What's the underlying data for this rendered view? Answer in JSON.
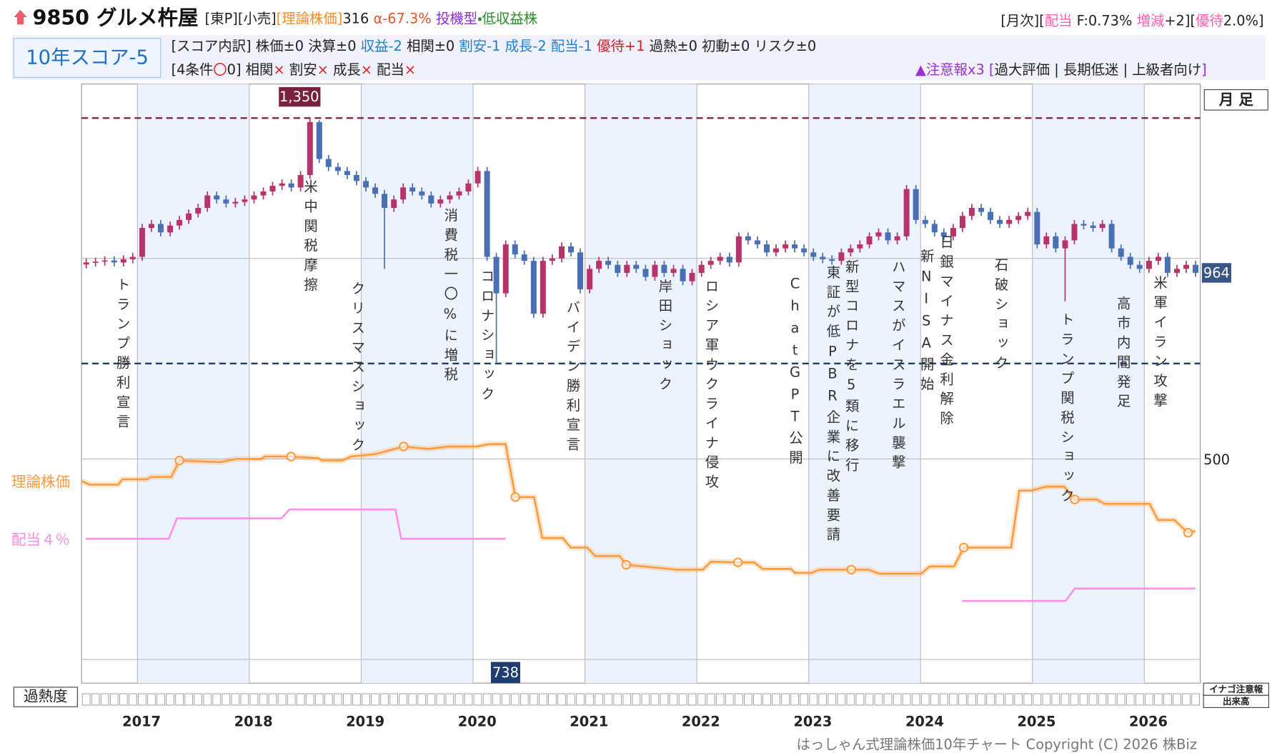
{
  "header": {
    "title": "9850 グルメ杵屋",
    "left_parts": [
      {
        "text": "[東P][小売]",
        "color": "#222"
      },
      {
        "text": "[理論株価]",
        "color": "#ff8a1f"
      },
      {
        "text": "316",
        "color": "#222"
      },
      {
        "text": " α-67.3%",
        "color": "#e8542a"
      },
      {
        "text": " 投機型",
        "color": "#8a2be2"
      },
      {
        "text": "・低収益株",
        "color": "#2e8b2e"
      }
    ],
    "right_parts": [
      {
        "text": "[月次][",
        "color": "#222"
      },
      {
        "text": "配当",
        "color": "#ff5fb0"
      },
      {
        "text": " F:0.73% ",
        "color": "#222"
      },
      {
        "text": "増減",
        "color": "#ff5fb0"
      },
      {
        "text": "+2][",
        "color": "#222"
      },
      {
        "text": "優待",
        "color": "#ff5fb0"
      },
      {
        "text": "2.0%]",
        "color": "#222"
      }
    ],
    "score": "10年スコア-5",
    "breakdown": [
      {
        "text": "[スコア内訳] 株価±0 決算±0 ",
        "color": "#222"
      },
      {
        "text": "収益-2",
        "color": "#1e7fd8"
      },
      {
        "text": " 相関±0 ",
        "color": "#222"
      },
      {
        "text": "割安-1 成長-2 配当-1 ",
        "color": "#1e7fd8"
      },
      {
        "text": "優待+1",
        "color": "#d0202a"
      },
      {
        "text": " 過熱±0 初動±0 リスク±0",
        "color": "#222"
      }
    ],
    "conditions": [
      {
        "text": "[4条件",
        "color": "#222"
      },
      {
        "text": "〇",
        "color": "#e02020"
      },
      {
        "text": "0] 相関",
        "color": "#222"
      },
      {
        "text": "×",
        "color": "#e02020"
      },
      {
        "text": " 割安",
        "color": "#222"
      },
      {
        "text": "×",
        "color": "#e02020"
      },
      {
        "text": " 成長",
        "color": "#222"
      },
      {
        "text": "×",
        "color": "#e02020"
      },
      {
        "text": " 配当",
        "color": "#222"
      },
      {
        "text": "×",
        "color": "#e02020"
      }
    ],
    "warning": [
      {
        "text": "▲注意報x3 [",
        "color": "#9b30d9"
      },
      {
        "text": "過大評価 | 長期低迷 | 上級者向け",
        "color": "#222"
      },
      {
        "text": "]",
        "color": "#9b30d9"
      }
    ]
  },
  "chart_data": {
    "type": "candlestick",
    "up_color": "#b8336a",
    "down_color": "#4a6fb5",
    "x": [
      2016.542,
      2016.625,
      2016.708,
      2016.792,
      2016.875,
      2016.958,
      2017.042,
      2017.125,
      2017.208,
      2017.292,
      2017.375,
      2017.458,
      2017.542,
      2017.625,
      2017.708,
      2017.792,
      2017.875,
      2017.958,
      2018.042,
      2018.125,
      2018.208,
      2018.292,
      2018.375,
      2018.458,
      2018.542,
      2018.625,
      2018.708,
      2018.792,
      2018.875,
      2018.958,
      2019.042,
      2019.125,
      2019.208,
      2019.292,
      2019.375,
      2019.458,
      2019.542,
      2019.625,
      2019.708,
      2019.792,
      2019.875,
      2019.958,
      2020.042,
      2020.125,
      2020.208,
      2020.292,
      2020.375,
      2020.458,
      2020.542,
      2020.625,
      2020.708,
      2020.792,
      2020.875,
      2020.958,
      2021.042,
      2021.125,
      2021.208,
      2021.292,
      2021.375,
      2021.458,
      2021.542,
      2021.625,
      2021.708,
      2021.792,
      2021.875,
      2021.958,
      2022.042,
      2022.125,
      2022.208,
      2022.292,
      2022.375,
      2022.458,
      2022.542,
      2022.625,
      2022.708,
      2022.792,
      2022.875,
      2022.958,
      2023.042,
      2023.125,
      2023.208,
      2023.292,
      2023.375,
      2023.458,
      2023.542,
      2023.625,
      2023.708,
      2023.792,
      2023.875,
      2023.958,
      2024.042,
      2024.125,
      2024.208,
      2024.292,
      2024.375,
      2024.458,
      2024.542,
      2024.625,
      2024.708,
      2024.792,
      2024.875,
      2024.958,
      2025.042,
      2025.125,
      2025.208,
      2025.292,
      2025.375,
      2025.458,
      2025.542,
      2025.625,
      2025.708,
      2025.792,
      2025.875,
      2025.958,
      2026.042,
      2026.125,
      2026.208,
      2026.292,
      2026.375,
      2026.458
    ],
    "open": [
      985,
      990,
      992,
      995,
      990,
      998,
      1004,
      1076,
      1086,
      1065,
      1082,
      1096,
      1112,
      1126,
      1157,
      1147,
      1137,
      1141,
      1147,
      1157,
      1167,
      1181,
      1187,
      1177,
      1208,
      1340,
      1248,
      1228,
      1218,
      1208,
      1193,
      1177,
      1161,
      1126,
      1147,
      1177,
      1167,
      1157,
      1137,
      1147,
      1157,
      1167,
      1187,
      1218,
      1004,
      913,
      1035,
      1010,
      994,
      862,
      994,
      1000,
      1030,
      1015,
      923,
      974,
      994,
      984,
      964,
      984,
      974,
      954,
      984,
      964,
      974,
      943,
      964,
      984,
      994,
      1004,
      990,
      1055,
      1045,
      1035,
      1015,
      1025,
      1035,
      1025,
      1015,
      1004,
      998,
      994,
      1015,
      1025,
      1035,
      1055,
      1065,
      1045,
      1055,
      1173,
      1096,
      1086,
      1065,
      1055,
      1076,
      1106,
      1126,
      1116,
      1096,
      1086,
      1096,
      1106,
      1116,
      1035,
      1055,
      1025,
      1045,
      1086,
      1082,
      1076,
      1086,
      1025,
      1004,
      984,
      974,
      994,
      1004,
      964,
      974,
      984
    ],
    "high": [
      1000,
      1002,
      1005,
      1005,
      1008,
      1014,
      1086,
      1096,
      1096,
      1092,
      1106,
      1122,
      1136,
      1167,
      1167,
      1157,
      1151,
      1157,
      1167,
      1177,
      1191,
      1197,
      1197,
      1218,
      1350,
      1345,
      1258,
      1238,
      1228,
      1218,
      1203,
      1187,
      1171,
      1157,
      1187,
      1187,
      1177,
      1167,
      1157,
      1167,
      1177,
      1197,
      1228,
      1228,
      1014,
      1045,
      1045,
      1020,
      1004,
      1004,
      1010,
      1040,
      1040,
      1025,
      984,
      1004,
      1004,
      994,
      994,
      994,
      984,
      994,
      994,
      984,
      984,
      974,
      994,
      1004,
      1014,
      1014,
      1065,
      1065,
      1055,
      1045,
      1035,
      1045,
      1045,
      1035,
      1025,
      1014,
      1008,
      1025,
      1035,
      1045,
      1065,
      1075,
      1075,
      1065,
      1183,
      1183,
      1106,
      1096,
      1075,
      1086,
      1116,
      1136,
      1136,
      1126,
      1106,
      1106,
      1116,
      1126,
      1126,
      1065,
      1065,
      1055,
      1096,
      1096,
      1092,
      1096,
      1096,
      1035,
      1014,
      994,
      1004,
      1014,
      1014,
      984,
      994,
      994
    ],
    "low": [
      975,
      980,
      982,
      980,
      980,
      988,
      994,
      1066,
      1055,
      1055,
      1072,
      1086,
      1102,
      1116,
      1137,
      1127,
      1127,
      1131,
      1137,
      1147,
      1157,
      1171,
      1167,
      1167,
      1198,
      1238,
      1218,
      1208,
      1198,
      1183,
      1167,
      1151,
      974,
      1116,
      1137,
      1157,
      1147,
      1127,
      1127,
      1137,
      1147,
      1157,
      1177,
      994,
      738,
      903,
      1000,
      984,
      852,
      852,
      984,
      990,
      1005,
      913,
      913,
      964,
      974,
      954,
      954,
      964,
      944,
      944,
      954,
      954,
      933,
      933,
      954,
      974,
      984,
      980,
      980,
      1035,
      1025,
      1005,
      1005,
      1015,
      1015,
      1005,
      994,
      988,
      984,
      984,
      1005,
      1015,
      1025,
      1045,
      1035,
      1035,
      1045,
      1086,
      1076,
      1055,
      1045,
      1045,
      1066,
      1096,
      1106,
      1086,
      1076,
      1076,
      1086,
      1096,
      1025,
      1025,
      1015,
      893,
      1035,
      1072,
      1066,
      1066,
      1015,
      994,
      974,
      964,
      964,
      984,
      954,
      954,
      964,
      954
    ],
    "close": [
      990,
      992,
      995,
      990,
      998,
      1004,
      1076,
      1086,
      1065,
      1082,
      1096,
      1112,
      1126,
      1157,
      1147,
      1137,
      1141,
      1147,
      1157,
      1167,
      1181,
      1187,
      1177,
      1208,
      1340,
      1248,
      1228,
      1218,
      1208,
      1193,
      1177,
      1161,
      1126,
      1147,
      1177,
      1167,
      1157,
      1137,
      1147,
      1157,
      1167,
      1187,
      1218,
      1004,
      913,
      1035,
      1010,
      994,
      862,
      994,
      1000,
      1030,
      1015,
      923,
      974,
      994,
      984,
      964,
      984,
      974,
      954,
      984,
      964,
      974,
      943,
      964,
      984,
      994,
      1004,
      990,
      1055,
      1045,
      1035,
      1015,
      1025,
      1035,
      1025,
      1015,
      1004,
      998,
      994,
      1015,
      1025,
      1035,
      1055,
      1065,
      1045,
      1055,
      1173,
      1096,
      1086,
      1065,
      1055,
      1076,
      1106,
      1126,
      1116,
      1096,
      1086,
      1096,
      1106,
      1116,
      1035,
      1055,
      1025,
      1045,
      1086,
      1082,
      1076,
      1086,
      1025,
      1004,
      984,
      974,
      994,
      1004,
      964,
      974,
      984,
      964
    ],
    "xlim": [
      2016.5,
      2026.5
    ],
    "xticks": [
      2017,
      2018,
      2019,
      2020,
      2021,
      2022,
      2023,
      2024,
      2025,
      2026
    ],
    "ylim": [
      -59,
      1435
    ],
    "yticks": [
      500
    ],
    "grid_lines": [
      0,
      1000
    ],
    "max_label": {
      "value": 1350,
      "label": "1,350"
    },
    "min_label": {
      "value": 738,
      "label": "738"
    },
    "last_label": {
      "value": 964,
      "label": "964"
    },
    "period": "月 足",
    "lines": [
      {
        "name": "理論株価",
        "color": "#ff9a3c",
        "x": [
          2016.5,
          2016.573,
          2016.828,
          2016.864,
          2017.083,
          2017.12,
          2017.302,
          2017.375,
          2017.739,
          2017.885,
          2018.104,
          2018.14,
          2018.373,
          2018.614,
          2018.65,
          2018.832,
          2018.905,
          2019.124,
          2019.379,
          2019.598,
          2019.78,
          2020.035,
          2020.144,
          2020.29,
          2020.378,
          2020.545,
          2020.618,
          2020.8,
          2020.873,
          2021.019,
          2021.092,
          2021.31,
          2021.369,
          2021.675,
          2021.821,
          2022.054,
          2022.127,
          2022.367,
          2022.513,
          2022.586,
          2022.841,
          2022.878,
          2023.023,
          2023.096,
          2023.381,
          2023.534,
          2023.628,
          2024.007,
          2024.08,
          2024.299,
          2024.386,
          2024.809,
          2024.882,
          2024.991,
          2025.122,
          2025.283,
          2025.378,
          2025.574,
          2025.647,
          2025.829,
          2026.048,
          2026.121,
          2026.267,
          2026.391,
          2026.457
        ],
        "values": [
          445,
          436,
          436,
          449,
          449,
          455,
          455,
          496,
          492,
          500,
          500,
          506,
          506,
          502,
          496,
          496,
          506,
          512,
          531,
          525,
          531,
          531,
          537,
          537,
          405,
          405,
          303,
          303,
          279,
          279,
          258,
          258,
          236,
          228,
          224,
          224,
          244,
          242,
          242,
          226,
          226,
          216,
          216,
          224,
          224,
          224,
          214,
          214,
          232,
          232,
          279,
          279,
          421,
          421,
          431,
          431,
          399,
          399,
          388,
          388,
          388,
          348,
          348,
          316,
          320
        ],
        "marked_points": [
          7,
          12,
          18,
          24,
          32,
          37,
          44,
          50,
          56,
          63
        ]
      },
      {
        "name": "配当４％",
        "color": "#ff8ce6",
        "x": [
          2016.536,
          2017.28,
          2017.353,
          2018.286,
          2018.359,
          2019.306,
          2019.357,
          2020.29,
          2022.5,
          2024.372,
          2025.297,
          2025.378,
          2026.457
        ],
        "values": [
          301,
          301,
          352,
          352,
          374,
          374,
          301,
          301,
          null,
          146,
          146,
          177,
          177
        ]
      }
    ],
    "events": [
      "トランプ勝利宣言",
      "米中関税摩擦",
      "クリスマスショック",
      "消費税一〇%に増税",
      "コロナショック",
      "バイデン勝利宣言",
      "岸田ショック",
      "ロシア軍ウクライナ侵攻",
      "ChatGPT公開",
      "東証が低PBR企業に改善要請",
      "新型コロナを5類に移行",
      "ハマスがイスラエル襲撃",
      "新NISA開始",
      "日銀マイナス金利解除",
      "石破ショック",
      "トランプ関税ショック",
      "高市内閣発足",
      "米軍イラン攻撃"
    ],
    "heat_label": "過熱度",
    "inago_label": "イナゴ注意報",
    "volume_label": "出来高",
    "copyright": "はっしゃん式理論株価10年チャート Copyright (C) 2026 株Biz"
  }
}
